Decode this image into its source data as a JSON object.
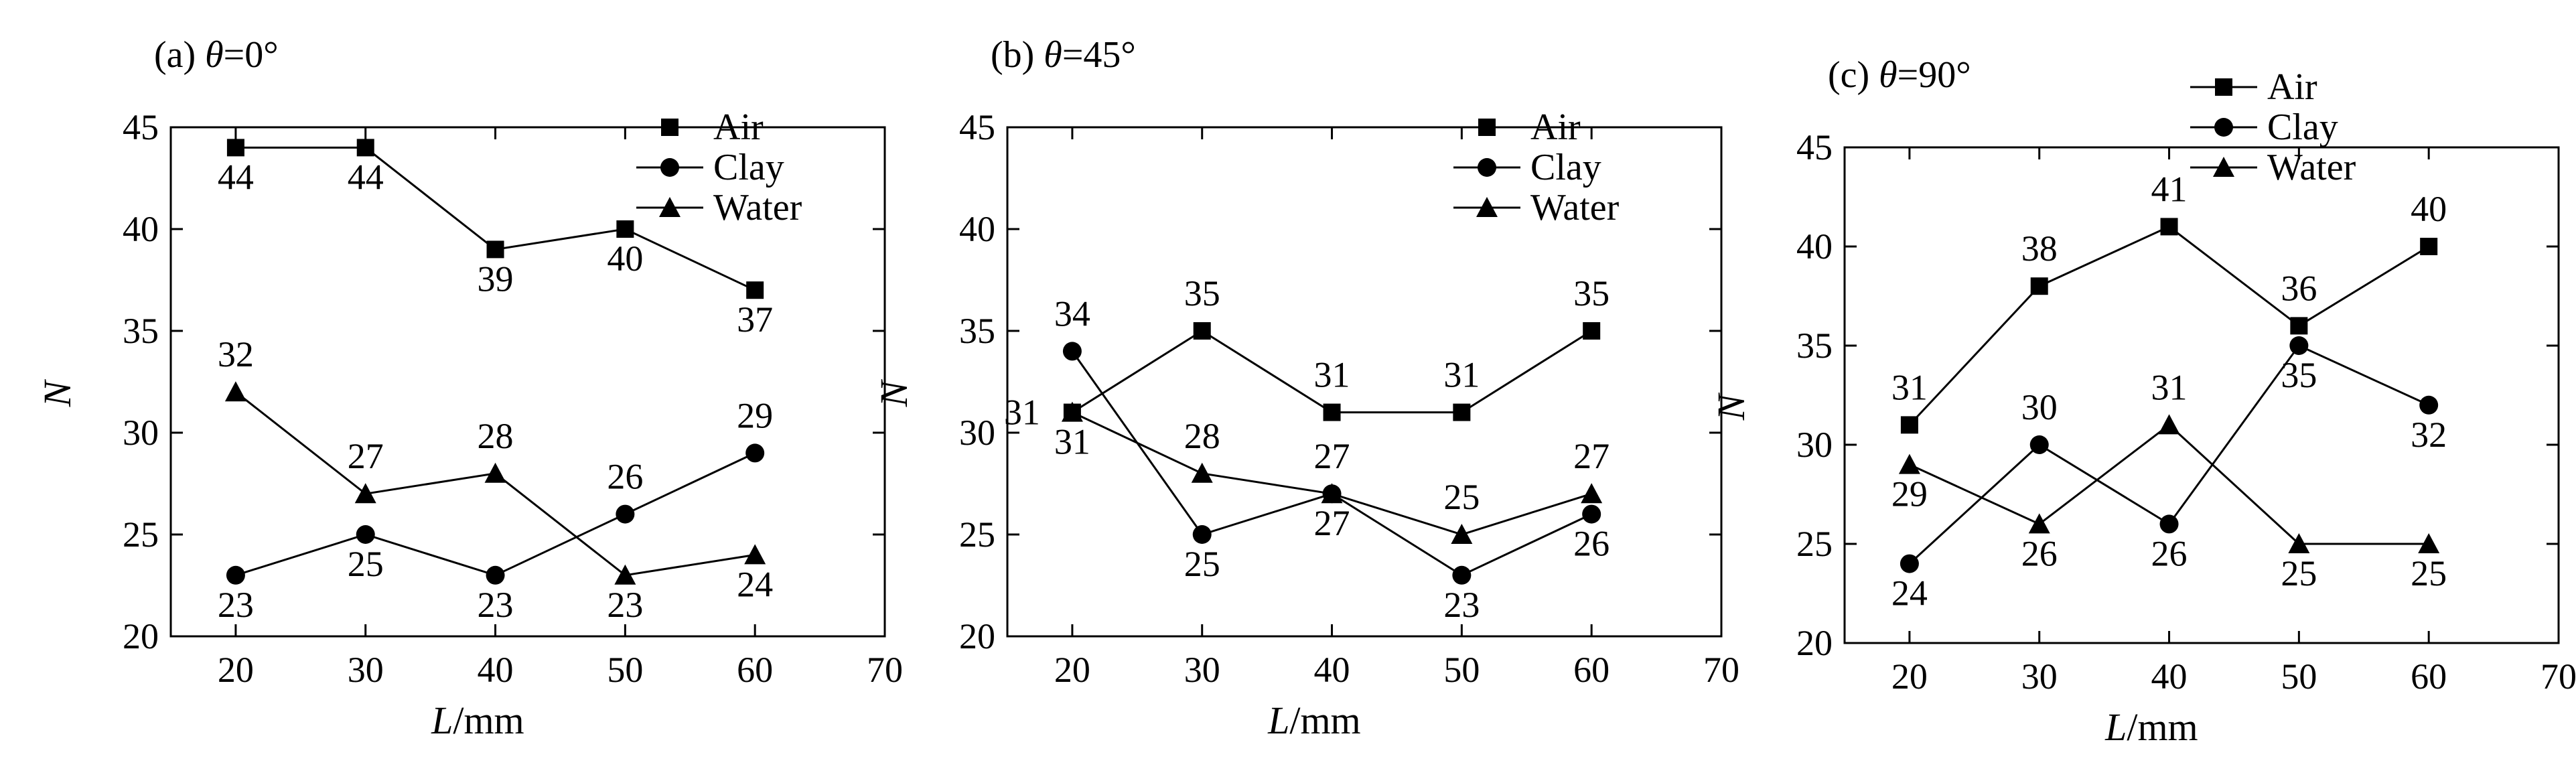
{
  "chart_data": [
    {
      "type": "line",
      "title": "(a) θ=0°",
      "xlabel": "L/mm",
      "ylabel": "N",
      "x": [
        20,
        30,
        40,
        50,
        60
      ],
      "xlim": [
        15,
        70
      ],
      "ylim": [
        20,
        45
      ],
      "xticks": [
        20,
        30,
        40,
        50,
        60,
        70
      ],
      "yticks": [
        20,
        25,
        30,
        35,
        40,
        45
      ],
      "grid": false,
      "legend_position": "top-right",
      "series": [
        {
          "name": "Air",
          "marker": "square",
          "values": [
            44,
            44,
            39,
            40,
            37
          ],
          "label_pos": [
            "below",
            "below",
            "below",
            "below",
            "below"
          ]
        },
        {
          "name": "Clay",
          "marker": "circle",
          "values": [
            23,
            25,
            23,
            26,
            29
          ],
          "label_pos": [
            "below",
            "below",
            "below",
            "above",
            "above"
          ]
        },
        {
          "name": "Water",
          "marker": "triangle",
          "values": [
            32,
            27,
            28,
            23,
            24
          ],
          "label_pos": [
            "above",
            "above",
            "above",
            "below",
            "below"
          ]
        }
      ]
    },
    {
      "type": "line",
      "title": "(b) θ=45°",
      "xlabel": "L/mm",
      "ylabel": "N",
      "x": [
        20,
        30,
        40,
        50,
        60
      ],
      "xlim": [
        15,
        70
      ],
      "ylim": [
        20,
        45
      ],
      "xticks": [
        20,
        30,
        40,
        50,
        60,
        70
      ],
      "yticks": [
        20,
        25,
        30,
        35,
        40,
        45
      ],
      "grid": false,
      "legend_position": "top-right",
      "series": [
        {
          "name": "Air",
          "marker": "square",
          "values": [
            31,
            35,
            31,
            31,
            35
          ],
          "label_pos": [
            "left",
            "above",
            "above",
            "above",
            "above"
          ]
        },
        {
          "name": "Clay",
          "marker": "circle",
          "values": [
            34,
            25,
            27,
            23,
            26
          ],
          "label_pos": [
            "above",
            "below",
            "below",
            "below",
            "below"
          ]
        },
        {
          "name": "Water",
          "marker": "triangle",
          "values": [
            31,
            28,
            27,
            25,
            27
          ],
          "label_pos": [
            "below",
            "above",
            "above",
            "above",
            "above"
          ]
        }
      ]
    },
    {
      "type": "line",
      "title": "(c) θ=90°",
      "xlabel": "L/mm",
      "ylabel": "N",
      "x": [
        20,
        30,
        40,
        50,
        60
      ],
      "xlim": [
        15,
        70
      ],
      "ylim": [
        20,
        45
      ],
      "xticks": [
        20,
        30,
        40,
        50,
        60,
        70
      ],
      "yticks": [
        20,
        25,
        30,
        35,
        40,
        45
      ],
      "grid": false,
      "legend_position": "top-right",
      "series": [
        {
          "name": "Air",
          "marker": "square",
          "values": [
            31,
            38,
            41,
            36,
            40
          ],
          "label_pos": [
            "above",
            "above",
            "above",
            "above",
            "above"
          ]
        },
        {
          "name": "Clay",
          "marker": "circle",
          "values": [
            24,
            30,
            26,
            35,
            32
          ],
          "label_pos": [
            "below",
            "above",
            "below",
            "below",
            "below"
          ]
        },
        {
          "name": "Water",
          "marker": "triangle",
          "values": [
            29,
            26,
            31,
            25,
            25
          ],
          "label_pos": [
            "below",
            "below",
            "above",
            "below",
            "below"
          ]
        }
      ]
    }
  ]
}
